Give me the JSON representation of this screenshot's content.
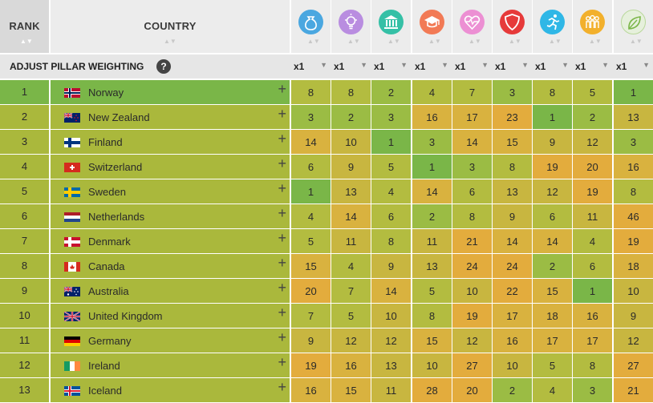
{
  "header": {
    "rank_label": "RANK",
    "country_label": "COUNTRY",
    "sort_glyph": "▲▼"
  },
  "pillars": [
    {
      "icon": "money-bag-icon",
      "color": "#4aa7e0"
    },
    {
      "icon": "lightbulb-icon",
      "color": "#b98de0"
    },
    {
      "icon": "government-building-icon",
      "color": "#35c0a6"
    },
    {
      "icon": "graduation-cap-icon",
      "color": "#f27a55"
    },
    {
      "icon": "heartbeat-icon",
      "color": "#ec8fd3"
    },
    {
      "icon": "shield-icon",
      "color": "#e63a3a"
    },
    {
      "icon": "runner-icon",
      "color": "#2fb7e6"
    },
    {
      "icon": "people-icon",
      "color": "#f2b02c"
    },
    {
      "icon": "leaf-icon",
      "color": "#e6f0dc"
    }
  ],
  "adjust": {
    "label": "ADJUST PILLAR WEIGHTING",
    "help_glyph": "?",
    "weights": [
      "x1",
      "x1",
      "x1",
      "x1",
      "x1",
      "x1",
      "x1",
      "x1",
      "x1"
    ],
    "dropdown_glyph": "▼"
  },
  "plus_glyph": "+",
  "rows": [
    {
      "rank": "1",
      "country": "Norway",
      "flag": "norway",
      "values": [
        "8",
        "8",
        "2",
        "4",
        "7",
        "3",
        "8",
        "5",
        "1"
      ]
    },
    {
      "rank": "2",
      "country": "New Zealand",
      "flag": "new-zealand",
      "values": [
        "3",
        "2",
        "3",
        "16",
        "17",
        "23",
        "1",
        "2",
        "13"
      ]
    },
    {
      "rank": "3",
      "country": "Finland",
      "flag": "finland",
      "values": [
        "14",
        "10",
        "1",
        "3",
        "14",
        "15",
        "9",
        "12",
        "3"
      ]
    },
    {
      "rank": "4",
      "country": "Switzerland",
      "flag": "switzerland",
      "values": [
        "6",
        "9",
        "5",
        "1",
        "3",
        "8",
        "19",
        "20",
        "16"
      ]
    },
    {
      "rank": "5",
      "country": "Sweden",
      "flag": "sweden",
      "values": [
        "1",
        "13",
        "4",
        "14",
        "6",
        "13",
        "12",
        "19",
        "8"
      ]
    },
    {
      "rank": "6",
      "country": "Netherlands",
      "flag": "netherlands",
      "values": [
        "4",
        "14",
        "6",
        "2",
        "8",
        "9",
        "6",
        "11",
        "46"
      ]
    },
    {
      "rank": "7",
      "country": "Denmark",
      "flag": "denmark",
      "values": [
        "5",
        "11",
        "8",
        "11",
        "21",
        "14",
        "14",
        "4",
        "19"
      ]
    },
    {
      "rank": "8",
      "country": "Canada",
      "flag": "canada",
      "values": [
        "15",
        "4",
        "9",
        "13",
        "24",
        "24",
        "2",
        "6",
        "18"
      ]
    },
    {
      "rank": "9",
      "country": "Australia",
      "flag": "australia",
      "values": [
        "20",
        "7",
        "14",
        "5",
        "10",
        "22",
        "15",
        "1",
        "10"
      ]
    },
    {
      "rank": "10",
      "country": "United Kingdom",
      "flag": "united-kingdom",
      "values": [
        "7",
        "5",
        "10",
        "8",
        "19",
        "17",
        "18",
        "16",
        "9"
      ]
    },
    {
      "rank": "11",
      "country": "Germany",
      "flag": "germany",
      "values": [
        "9",
        "12",
        "12",
        "15",
        "12",
        "16",
        "17",
        "17",
        "12"
      ]
    },
    {
      "rank": "12",
      "country": "Ireland",
      "flag": "ireland",
      "values": [
        "19",
        "16",
        "13",
        "10",
        "27",
        "10",
        "5",
        "8",
        "27"
      ]
    },
    {
      "rank": "13",
      "country": "Iceland",
      "flag": "iceland",
      "values": [
        "16",
        "15",
        "11",
        "28",
        "20",
        "2",
        "4",
        "3",
        "21"
      ]
    }
  ],
  "colors": {
    "best": "#7ab648",
    "good": "#9bbc44",
    "mid": "#b3bc40",
    "below": "#c8b640",
    "worse": "#d9b23f",
    "worst": "#e3ac3d",
    "rank_row_first": "#7ab648",
    "rank_row_default": "#aab83c"
  }
}
